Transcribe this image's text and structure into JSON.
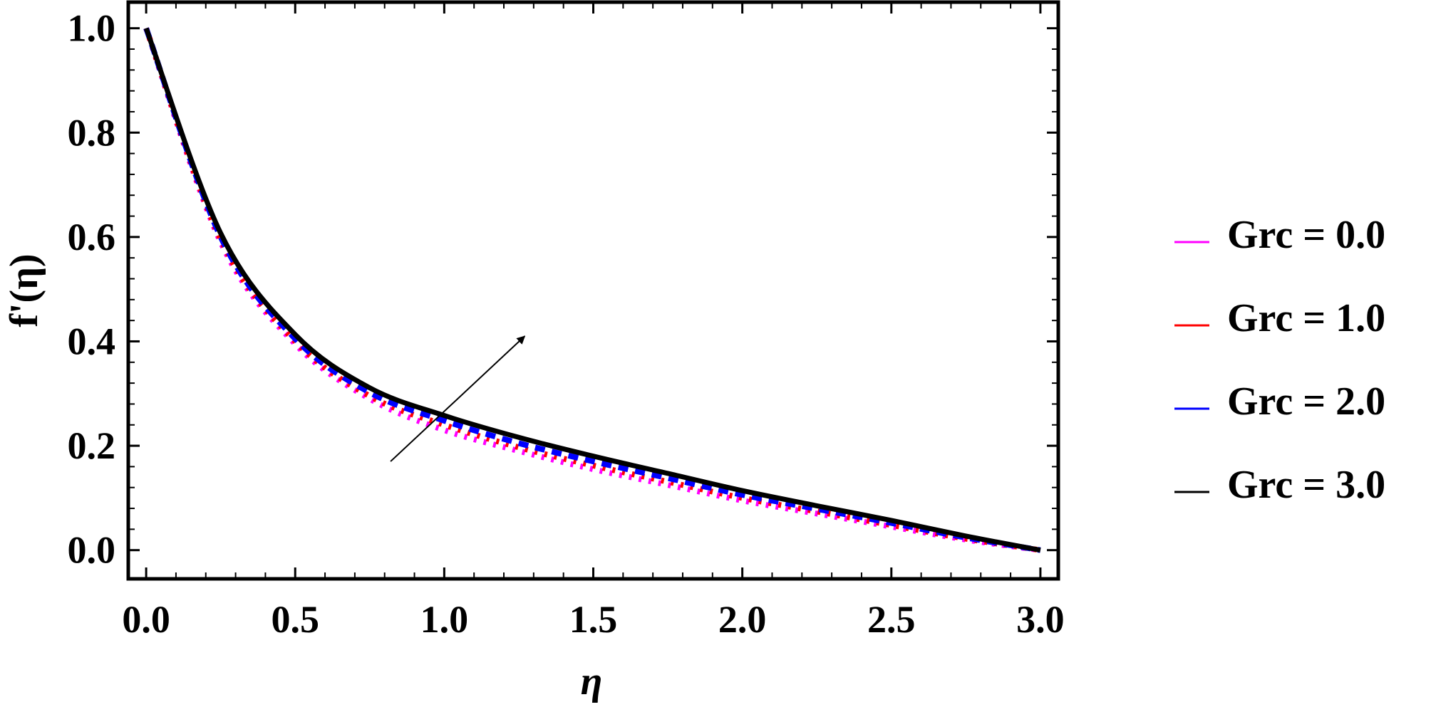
{
  "chart_data": {
    "type": "line",
    "xlabel": "η",
    "ylabel": "f'(η)",
    "xlim": [
      -0.06,
      3.06
    ],
    "ylim": [
      -0.055,
      1.05
    ],
    "xticks": [
      0.0,
      0.5,
      1.0,
      1.5,
      2.0,
      2.5,
      3.0
    ],
    "xtick_labels": [
      "0.0",
      "0.5",
      "1.0",
      "1.5",
      "2.0",
      "2.5",
      "3.0"
    ],
    "yticks": [
      0.0,
      0.2,
      0.4,
      0.6,
      0.8,
      1.0
    ],
    "ytick_labels": [
      "0.0",
      "0.2",
      "0.4",
      "0.6",
      "0.8",
      "1.0"
    ],
    "grid": false,
    "legend_position": "right",
    "annotation": "arrow indicating increasing Grc",
    "x": [
      0.0,
      0.25,
      0.5,
      0.75,
      1.0,
      1.25,
      1.5,
      1.75,
      2.0,
      2.25,
      2.5,
      2.75,
      3.0
    ],
    "series": [
      {
        "name": "Grc = 0.0",
        "color": "#ff00ff",
        "dash": "dot",
        "values": [
          1.0,
          0.59,
          0.395,
          0.29,
          0.23,
          0.19,
          0.155,
          0.125,
          0.095,
          0.07,
          0.045,
          0.02,
          0.0
        ]
      },
      {
        "name": "Grc = 1.0",
        "color": "#ff0000",
        "dash": "dot",
        "values": [
          1.0,
          0.595,
          0.4,
          0.295,
          0.24,
          0.197,
          0.162,
          0.131,
          0.1,
          0.074,
          0.048,
          0.022,
          0.0
        ]
      },
      {
        "name": "Grc = 2.0",
        "color": "#0000ff",
        "dash": "dash",
        "values": [
          1.0,
          0.6,
          0.405,
          0.302,
          0.248,
          0.205,
          0.17,
          0.138,
          0.106,
          0.079,
          0.052,
          0.024,
          0.0
        ]
      },
      {
        "name": "Grc = 3.0",
        "color": "#000000",
        "dash": "solid",
        "values": [
          1.0,
          0.607,
          0.413,
          0.311,
          0.258,
          0.216,
          0.18,
          0.147,
          0.114,
          0.085,
          0.057,
          0.027,
          0.0
        ]
      }
    ]
  }
}
